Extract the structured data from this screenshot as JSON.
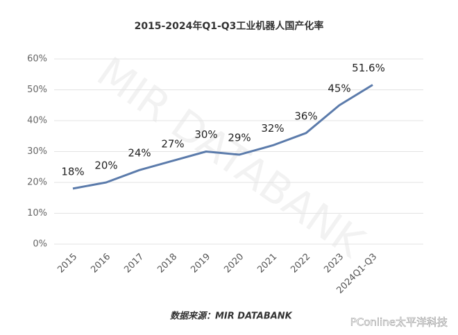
{
  "chart_data": {
    "type": "line",
    "title": "2015-2024年Q1-Q3工业机器人国产化率",
    "categories": [
      "2015",
      "2016",
      "2017",
      "2018",
      "2019",
      "2020",
      "2021",
      "2022",
      "2023",
      "2024Q1-Q3"
    ],
    "series": [
      {
        "name": "国产化率",
        "color": "#5b7bab",
        "values": [
          18,
          20,
          24,
          27,
          30,
          29,
          32,
          36,
          45,
          51.6
        ],
        "value_labels": [
          "18%",
          "20%",
          "24%",
          "27%",
          "30%",
          "29%",
          "32%",
          "36%",
          "45%",
          "51.6%"
        ]
      }
    ],
    "ylim": [
      0,
      60
    ],
    "yticks": [
      {
        "value": 0,
        "label": "0%"
      },
      {
        "value": 10,
        "label": "10%"
      },
      {
        "value": 20,
        "label": "20%"
      },
      {
        "value": 30,
        "label": "30%"
      },
      {
        "value": 40,
        "label": "40%"
      },
      {
        "value": 50,
        "label": "50%"
      },
      {
        "value": 60,
        "label": "60%"
      }
    ],
    "grid": true,
    "source": "数据来源：MIR DATABANK",
    "watermark": "MIR DATABANK",
    "credit": "PConline太平洋科技"
  }
}
